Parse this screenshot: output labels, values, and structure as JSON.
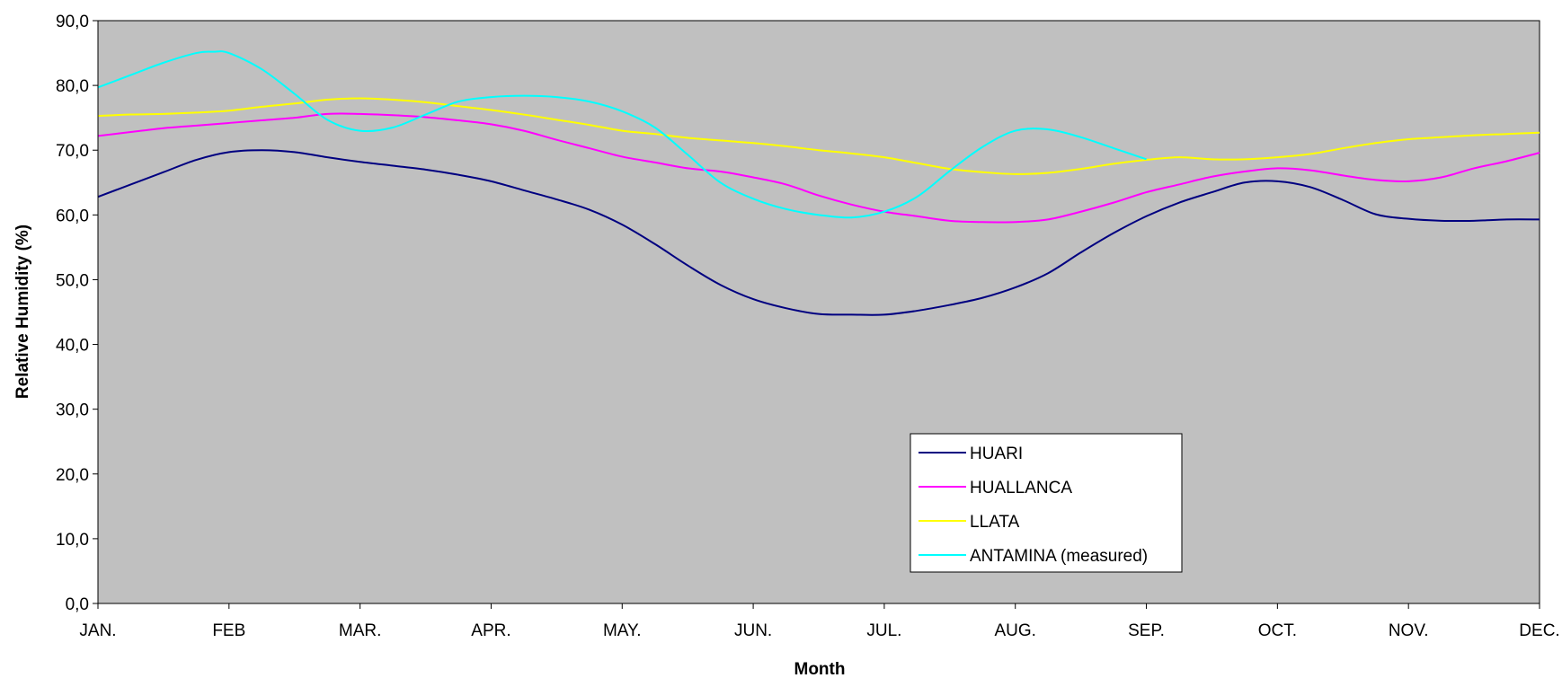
{
  "chart_data": {
    "type": "line",
    "title": "",
    "xlabel": "Month",
    "ylabel": "Relative Humidity (%)",
    "categories": [
      "JAN.",
      "FEB",
      "MAR.",
      "APR.",
      "MAY.",
      "JUN.",
      "JUL.",
      "AUG.",
      "SEP.",
      "OCT.",
      "NOV.",
      "DEC."
    ],
    "ylim": [
      0,
      90
    ],
    "yticks": [
      "0,0",
      "10,0",
      "20,0",
      "30,0",
      "40,0",
      "50,0",
      "60,0",
      "70,0",
      "80,0",
      "90,0"
    ],
    "grid": false,
    "plot_background": "#c0c0c0",
    "legend_position": "lower-center-right",
    "x_positions": [
      0,
      0.25,
      0.5,
      0.75,
      1,
      1.25,
      1.5,
      1.75,
      2,
      2.25,
      2.5,
      2.75,
      3,
      3.25,
      3.5,
      3.75,
      4,
      4.25,
      4.5,
      4.75,
      5,
      5.25,
      5.5,
      5.75,
      6,
      6.25,
      6.5,
      6.75,
      7,
      7.25,
      7.5,
      7.75,
      8,
      8.25,
      8.5,
      8.75,
      9,
      9.25,
      9.5,
      9.75,
      10,
      10.25,
      10.5,
      10.75,
      11
    ],
    "series": [
      {
        "name": "HUARI",
        "color": "#000080",
        "x": [
          0,
          0.25,
          0.5,
          0.75,
          1,
          1.25,
          1.5,
          1.75,
          2,
          2.25,
          2.5,
          2.75,
          3,
          3.25,
          3.5,
          3.75,
          4,
          4.25,
          4.5,
          4.75,
          5,
          5.25,
          5.5,
          5.75,
          6,
          6.25,
          6.5,
          6.75,
          7,
          7.25,
          7.5,
          7.75,
          8,
          8.25,
          8.5,
          8.75,
          9,
          9.25,
          9.5,
          9.75,
          10,
          10.25,
          10.5,
          10.75,
          11
        ],
        "values": [
          62.8,
          64.7,
          66.6,
          68.5,
          69.7,
          70.0,
          69.7,
          68.9,
          68.2,
          67.6,
          67.0,
          66.2,
          65.2,
          63.8,
          62.4,
          60.8,
          58.5,
          55.5,
          52.2,
          49.2,
          47.0,
          45.6,
          44.7,
          44.6,
          44.6,
          45.2,
          46.1,
          47.2,
          48.8,
          51.0,
          54.2,
          57.2,
          59.8,
          61.9,
          63.5,
          65.0,
          65.2,
          64.3,
          62.3,
          60.1,
          59.4,
          59.1,
          59.1,
          59.3,
          59.3
        ]
      },
      {
        "name": "HUALLANCA",
        "color": "#ff00ff",
        "x": [
          0,
          0.25,
          0.5,
          0.75,
          1,
          1.25,
          1.5,
          1.75,
          2,
          2.25,
          2.5,
          2.75,
          3,
          3.25,
          3.5,
          3.75,
          4,
          4.25,
          4.5,
          4.75,
          5,
          5.25,
          5.5,
          5.75,
          6,
          6.25,
          6.5,
          6.75,
          7,
          7.25,
          7.5,
          7.75,
          8,
          8.25,
          8.5,
          8.75,
          9,
          9.25,
          9.5,
          9.75,
          10,
          10.25,
          10.5,
          10.75,
          11
        ],
        "values": [
          72.2,
          72.8,
          73.4,
          73.8,
          74.2,
          74.6,
          75.0,
          75.6,
          75.6,
          75.4,
          75.1,
          74.6,
          74.0,
          73.0,
          71.6,
          70.3,
          69.0,
          68.1,
          67.2,
          66.7,
          65.8,
          64.7,
          63.0,
          61.6,
          60.5,
          59.8,
          59.1,
          58.9,
          58.9,
          59.3,
          60.5,
          61.9,
          63.5,
          64.7,
          65.9,
          66.7,
          67.2,
          66.9,
          66.1,
          65.4,
          65.2,
          65.8,
          67.2,
          68.3,
          69.6
        ]
      },
      {
        "name": "LLATA",
        "color": "#ffff00",
        "x": [
          0,
          0.25,
          0.5,
          0.75,
          1,
          1.25,
          1.5,
          1.75,
          2,
          2.25,
          2.5,
          2.75,
          3,
          3.25,
          3.5,
          3.75,
          4,
          4.25,
          4.5,
          4.75,
          5,
          5.25,
          5.5,
          5.75,
          6,
          6.25,
          6.5,
          6.75,
          7,
          7.25,
          7.5,
          7.75,
          8,
          8.25,
          8.5,
          8.75,
          9,
          9.25,
          9.5,
          9.75,
          10,
          10.25,
          10.5,
          10.75,
          11
        ],
        "values": [
          75.3,
          75.5,
          75.6,
          75.8,
          76.1,
          76.7,
          77.2,
          77.8,
          78.0,
          77.8,
          77.4,
          76.8,
          76.2,
          75.5,
          74.7,
          73.9,
          73.0,
          72.5,
          71.9,
          71.5,
          71.1,
          70.6,
          70.0,
          69.5,
          68.9,
          68.0,
          67.1,
          66.6,
          66.3,
          66.5,
          67.1,
          67.9,
          68.5,
          68.9,
          68.6,
          68.6,
          68.9,
          69.4,
          70.3,
          71.1,
          71.7,
          72.0,
          72.3,
          72.5,
          72.7
        ]
      },
      {
        "name": "ANTAMINA (measured)",
        "color": "#00ffff",
        "x": [
          0,
          0.25,
          0.5,
          0.75,
          0.88,
          1,
          1.25,
          1.5,
          1.75,
          2,
          2.25,
          2.5,
          2.75,
          3,
          3.25,
          3.5,
          3.75,
          4,
          4.25,
          4.5,
          4.75,
          5,
          5.25,
          5.5,
          5.75,
          6,
          6.25,
          6.5,
          6.75,
          7,
          7.25,
          7.5,
          7.75,
          8
        ],
        "values": [
          79.7,
          81.6,
          83.5,
          85.0,
          85.2,
          85.0,
          82.5,
          78.7,
          74.7,
          73.0,
          73.5,
          75.5,
          77.5,
          78.2,
          78.4,
          78.2,
          77.5,
          76.0,
          73.5,
          69.3,
          65.0,
          62.5,
          60.9,
          60.0,
          59.6,
          60.5,
          62.8,
          66.8,
          70.5,
          73.0,
          73.2,
          72.0,
          70.3,
          68.6
        ]
      }
    ]
  }
}
